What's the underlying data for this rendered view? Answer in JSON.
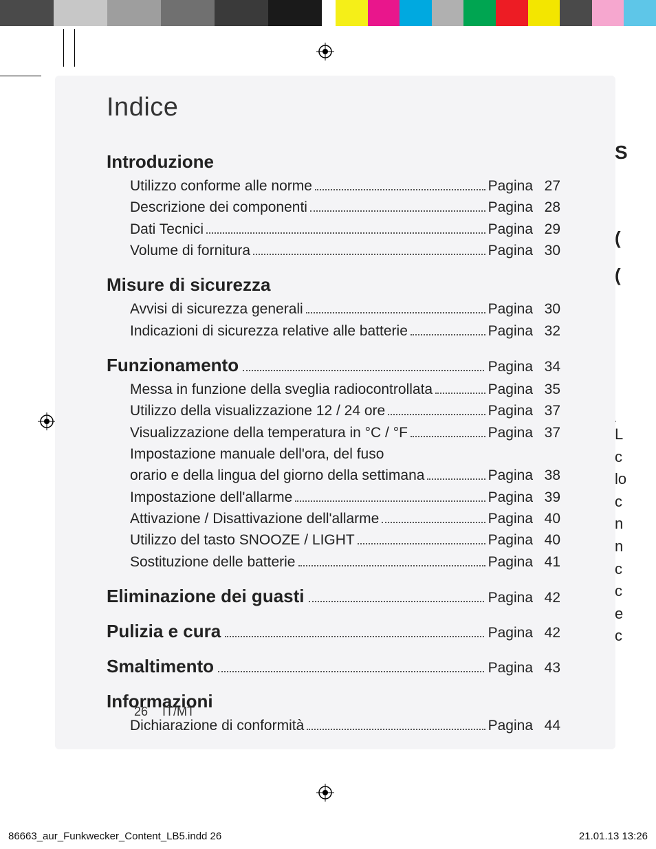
{
  "color_bar": {
    "left": [
      "#4a4a4a",
      "#c7c7c7",
      "#9e9e9e",
      "#707070",
      "#3a3a3a",
      "#1a1a1a"
    ],
    "right": [
      "#f5ef18",
      "#e9168c",
      "#00a9e0",
      "#b0b0b0",
      "#00a551",
      "#ed1c24",
      "#f3e600",
      "#4a4a4a",
      "#f6a7cf",
      "#5ec6e8"
    ]
  },
  "crop_marks_color": "#000000",
  "title": "Indice",
  "page_word": "Pagina",
  "sections": [
    {
      "heading": "Introduzione",
      "heading_page": null,
      "items": [
        {
          "label": "Utilizzo conforme alle norme",
          "page": "27"
        },
        {
          "label": "Descrizione dei componenti",
          "page": "28"
        },
        {
          "label": "Dati Tecnici",
          "page": "29"
        },
        {
          "label": "Volume di fornitura",
          "page": "30"
        }
      ]
    },
    {
      "heading": "Misure di sicurezza",
      "heading_page": null,
      "items": [
        {
          "label": "Avvisi di sicurezza generali",
          "page": "30"
        },
        {
          "label": "Indicazioni di sicurezza relative alle batterie",
          "page": "32"
        }
      ]
    },
    {
      "heading": "Funzionamento",
      "heading_page": "34",
      "items": [
        {
          "label": "Messa in funzione della sveglia radiocontrollata",
          "page": "35"
        },
        {
          "label": "Utilizzo della visualizzazione 12 / 24 ore",
          "page": "37"
        },
        {
          "label": "Visualizzazione della temperatura in °C / °F",
          "page": "37"
        },
        {
          "label_pre": "Impostazione manuale dell'ora, del fuso",
          "label": "orario e della lingua del giorno della settimana",
          "page": "38"
        },
        {
          "label": "Impostazione dell'allarme",
          "page": "39"
        },
        {
          "label": "Attivazione / Disattivazione dell'allarme",
          "page": "40"
        },
        {
          "label": "Utilizzo del tasto SNOOZE / LIGHT",
          "page": "40"
        },
        {
          "label": "Sostituzione delle batterie",
          "page": "41"
        }
      ]
    },
    {
      "heading": "Eliminazione dei guasti",
      "heading_page": "42",
      "items": []
    },
    {
      "heading": "Pulizia e cura",
      "heading_page": "42",
      "items": []
    },
    {
      "heading": "Smaltimento",
      "heading_page": "43",
      "items": []
    },
    {
      "heading": "Informazioni",
      "heading_page": null,
      "items": [
        {
          "label": "Dichiarazione di conformità",
          "page": "44"
        }
      ]
    }
  ],
  "footer": {
    "page_number": "26",
    "lang": "IT/MT"
  },
  "imprint": {
    "file": "86663_aur_Funkwecker_Content_LB5.indd   26",
    "datetime": "21.01.13   13:26"
  },
  "right_clip_chars": [
    "S",
    "(",
    "(",
    "L",
    "c",
    "lo",
    "c",
    "n",
    "n",
    "c",
    "c",
    "e",
    "c"
  ]
}
